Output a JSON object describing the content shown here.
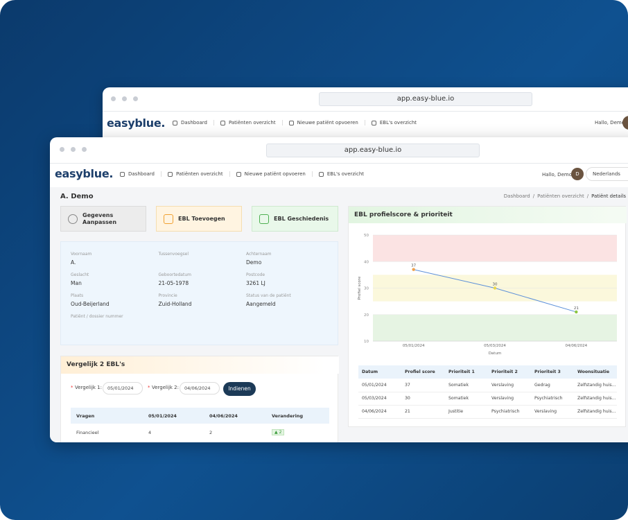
{
  "back_window": {
    "url": "app.easy-blue.io",
    "logo": "easyblue.",
    "nav": [
      "Dashboard",
      "Patiënten overzicht",
      "Nieuwe patiënt opvoeren",
      "EBL's overzicht"
    ],
    "greeting": "Hallo, Demo"
  },
  "window": {
    "url": "app.easy-blue.io",
    "logo": "easyblue.",
    "nav": [
      "Dashboard",
      "Patiënten overzicht",
      "Nieuwe patiënt opvoeren",
      "EBL's overzicht"
    ],
    "greeting": "Hallo, Demo",
    "avatar": "D",
    "language": "Nederlands"
  },
  "page": {
    "title": "A. Demo",
    "breadcrumb": [
      "Dashboard",
      "Patiënten overzicht",
      "Patiënt details"
    ]
  },
  "actions": [
    "Gegevens Aanpassen",
    "EBL Toevoegen",
    "EBL Geschiedenis"
  ],
  "patient": {
    "fields": [
      {
        "label": "Voornaam",
        "value": "A."
      },
      {
        "label": "Tussenvoegsel"
      },
      {
        "label": "Achternaam",
        "value": "Demo"
      },
      {
        "label": "Geslacht",
        "value": "Man"
      },
      {
        "label": "Geboortedatum",
        "value": "21-05-1978"
      },
      {
        "label": "Postcode",
        "value": "3261 LJ"
      },
      {
        "label": "Plaats",
        "value": "Oud-Beijerland"
      },
      {
        "label": "Provincie",
        "value": "Zuid-Holland"
      },
      {
        "label": "Status van de patiënt",
        "value": "Aangemeld"
      },
      {
        "label": "Patiënt / dossier nummer"
      }
    ]
  },
  "compare": {
    "title": "Vergelijk 2 EBL's",
    "select1_label": "Vergelijk 1:",
    "select1": "05/01/2024",
    "select2_label": "Vergelijk 2:",
    "select2": "04/06/2024",
    "button": "Indienen",
    "table": {
      "headers": [
        "Vragen",
        "05/01/2024",
        "04/06/2024",
        "Verandering"
      ],
      "rows": [
        [
          "Financieel",
          "4",
          "2",
          "2"
        ]
      ]
    }
  },
  "chart_panel": {
    "title": "EBL profielscore & prioriteit",
    "chart": {
      "type": "line",
      "categories": [
        "05/01/2024",
        "05/03/2024",
        "04/06/2024"
      ],
      "values": [
        37,
        30,
        21
      ],
      "point_colors": [
        "#f0a04b",
        "#e9d74a",
        "#8cc63f"
      ],
      "color": "#5b8fd9",
      "ylim": [
        10,
        50
      ],
      "yticks": [
        10,
        20,
        30,
        40,
        50
      ],
      "grid": true,
      "bands": [
        {
          "from": 40,
          "to": 50,
          "color": "#fbe3e3"
        },
        {
          "from": 25,
          "to": 35,
          "color": "#fbf8dc"
        },
        {
          "from": 10,
          "to": 20,
          "color": "#e6f4e3"
        }
      ],
      "y_label": "Profiel score",
      "x_label": "Datum"
    },
    "table": {
      "headers": [
        "Datum",
        "Profiel score",
        "Prioriteit 1",
        "Prioriteit 2",
        "Prioriteit 3",
        "Woonsituatie"
      ],
      "rows": [
        [
          "05/01/2024",
          "37",
          "Somatiek",
          "Verslaving",
          "Gedrag",
          "Zelfstandig huis..."
        ],
        [
          "05/03/2024",
          "30",
          "Somatiek",
          "Verslaving",
          "Psychiatrisch",
          "Zelfstandig huis..."
        ],
        [
          "04/06/2024",
          "21",
          "Justitie",
          "Psychiatrisch",
          "Verslaving",
          "Zelfstandig huis..."
        ]
      ]
    }
  }
}
